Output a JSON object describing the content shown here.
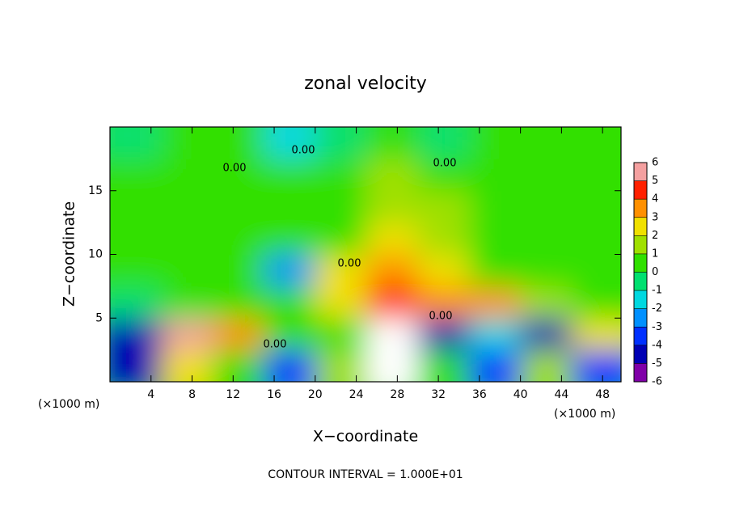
{
  "chart_data": {
    "type": "heatmap",
    "title": "zonal velocity",
    "x_label": "X−coordinate",
    "y_label": "Z−coordinate",
    "x_unit": "(×1000 m)",
    "x_unit_right": "(×1000 m)",
    "footnote": "CONTOUR INTERVAL = 1.000E+01",
    "contour_labels": [
      "0.00",
      "0.00",
      "0.00",
      "0.00",
      "0.00",
      "0.00"
    ],
    "x": [
      2.5,
      7.5,
      12.5,
      17.5,
      22.5,
      27.5,
      32.5,
      37.5,
      42.5,
      47.5
    ],
    "y": [
      1.25,
      3.75,
      6.25,
      8.75,
      11.25,
      13.75,
      16.25,
      18.75
    ],
    "values": [
      [
        -4,
        3,
        1,
        -3,
        2,
        7,
        1,
        -3,
        2,
        -3
      ],
      [
        -4,
        6,
        4,
        1,
        0.5,
        7,
        -4,
        -1,
        -4,
        3
      ],
      [
        0,
        0.3,
        0.5,
        0.2,
        3,
        5,
        4,
        4,
        2,
        0.5
      ],
      [
        0.3,
        0.3,
        0.5,
        -2,
        3,
        4,
        3,
        1,
        0.5,
        0.5
      ],
      [
        0.5,
        0.3,
        0.5,
        0.5,
        1,
        3,
        1.5,
        0.8,
        0.5,
        0.3
      ],
      [
        0.3,
        0.3,
        0.3,
        0.5,
        0.8,
        2,
        1.5,
        1,
        0.5,
        0.5
      ],
      [
        0.5,
        0.5,
        0.3,
        0.3,
        0.5,
        1.5,
        0.8,
        0.5,
        0.5,
        0.5
      ],
      [
        -0.5,
        0.5,
        0.5,
        -1,
        -0.5,
        0.5,
        0,
        0.5,
        0.5,
        0.5
      ]
    ],
    "xlim": [
      0,
      49.8
    ],
    "ylim": [
      0,
      20
    ],
    "xticks": [
      4,
      8,
      12,
      16,
      20,
      24,
      28,
      32,
      36,
      40,
      44,
      48
    ],
    "yticks": [
      5,
      10,
      15
    ],
    "colorbar_ticks": [
      -6,
      -5,
      -4,
      -3,
      -2,
      -1,
      0,
      1,
      2,
      3,
      4,
      5,
      6
    ],
    "colors": [
      "#8000a8",
      "#0000b4",
      "#0030ff",
      "#0090ff",
      "#00d8e0",
      "#00e070",
      "#30e000",
      "#a0e000",
      "#f0e000",
      "#ff9000",
      "#ff2000",
      "#f4a0a0"
    ],
    "out_of_range_color": "#ffffff"
  }
}
